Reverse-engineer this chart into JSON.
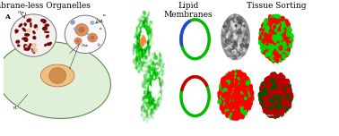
{
  "title_left": "Membrane-less Organelles",
  "title_mid": "Lipid\nMembranes",
  "title_right": "Tissue Sorting",
  "bg_color": "#ffffff",
  "fig_width": 3.78,
  "fig_height": 1.52,
  "header_fontsize": 6.5,
  "label_color_dark": "black",
  "label_color_light": "white",
  "panel_label_fontsize": 5.5
}
